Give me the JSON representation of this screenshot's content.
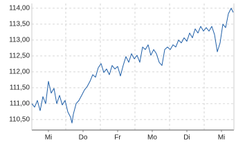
{
  "chart_data": {
    "type": "line",
    "xlim": [
      0.02,
      5.86
    ],
    "xticks": [
      {
        "value": 0.5,
        "label": "Mi"
      },
      {
        "value": 1.5,
        "label": "Do"
      },
      {
        "value": 2.5,
        "label": "Fr"
      },
      {
        "value": 3.5,
        "label": "Mo"
      },
      {
        "value": 4.5,
        "label": "Di"
      },
      {
        "value": 5.5,
        "label": "Mi"
      }
    ],
    "xgrid": [
      1,
      2,
      3,
      4,
      5
    ],
    "ylim": [
      110.17,
      114.15
    ],
    "yticks": [
      {
        "value": 110.5,
        "label": "110,50"
      },
      {
        "value": 111,
        "label": "111,00"
      },
      {
        "value": 111.5,
        "label": "111,50"
      },
      {
        "value": 112,
        "label": "112,00"
      },
      {
        "value": 112.5,
        "label": "112,50"
      },
      {
        "value": 113,
        "label": "113,00"
      },
      {
        "value": 113.5,
        "label": "113,50"
      },
      {
        "value": 114,
        "label": "114,00"
      }
    ],
    "grid": true,
    "x": [
      0.02,
      0.1,
      0.18,
      0.26,
      0.34,
      0.42,
      0.5,
      0.58,
      0.66,
      0.74,
      0.82,
      0.9,
      0.98,
      1.06,
      1.14,
      1.18,
      1.22,
      1.3,
      1.38,
      1.46,
      1.54,
      1.62,
      1.7,
      1.78,
      1.86,
      1.94,
      2.02,
      2.1,
      2.18,
      2.26,
      2.34,
      2.42,
      2.5,
      2.58,
      2.66,
      2.74,
      2.82,
      2.9,
      2.98,
      3.06,
      3.14,
      3.22,
      3.3,
      3.38,
      3.46,
      3.54,
      3.62,
      3.7,
      3.78,
      3.86,
      3.94,
      4.02,
      4.1,
      4.18,
      4.26,
      4.34,
      4.42,
      4.5,
      4.58,
      4.66,
      4.74,
      4.82,
      4.9,
      4.98,
      5.06,
      5.14,
      5.22,
      5.3,
      5.38,
      5.46,
      5.54,
      5.62,
      5.7,
      5.78,
      5.84
    ],
    "series": [
      {
        "color": "#1f5fa8",
        "values": [
          111.0,
          110.89,
          111.1,
          110.78,
          111.22,
          111.0,
          111.7,
          111.33,
          111.48,
          111.0,
          111.26,
          110.96,
          111.1,
          110.74,
          110.57,
          110.39,
          110.67,
          111.0,
          111.1,
          111.26,
          111.43,
          111.54,
          111.7,
          111.91,
          111.83,
          112.13,
          112.26,
          111.98,
          112.09,
          111.91,
          112.2,
          112.09,
          112.17,
          111.87,
          112.2,
          112.48,
          112.3,
          112.57,
          112.41,
          112.52,
          112.3,
          112.78,
          112.7,
          112.85,
          112.52,
          112.7,
          112.57,
          112.3,
          112.2,
          112.7,
          112.78,
          112.7,
          112.85,
          112.78,
          113.0,
          112.91,
          113.07,
          112.96,
          113.22,
          113.07,
          113.35,
          113.22,
          113.43,
          113.28,
          113.39,
          113.28,
          113.43,
          113.17,
          112.63,
          112.91,
          113.5,
          113.39,
          113.83,
          114.0,
          113.87
        ]
      }
    ]
  }
}
